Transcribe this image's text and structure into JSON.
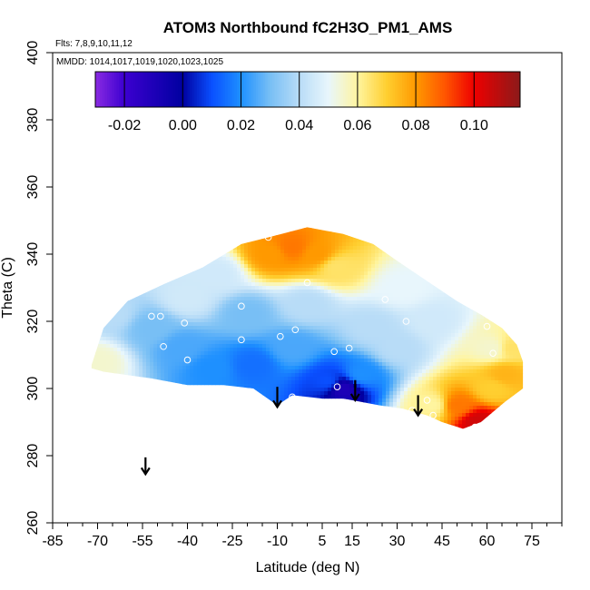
{
  "chart_data": {
    "type": "heatmap",
    "title": "ATOM3 Northbound fC2H3O_PM1_AMS",
    "subtitle_flights": "Flts: 7,8,9,10,11,12",
    "subtitle_dates": "MMDD: 1014,1017,1019,1020,1023,1025",
    "xlabel": "Latitude (deg N)",
    "ylabel": "Theta (C)",
    "xlim": [
      -85,
      85
    ],
    "ylim": [
      260,
      400
    ],
    "x_ticks": [
      "-85",
      "-70",
      "-55",
      "-40",
      "-25",
      "-10",
      "5",
      "15",
      "30",
      "45",
      "60",
      "75"
    ],
    "x_tick_values": [
      -85,
      -70,
      -55,
      -40,
      -25,
      -10,
      5,
      15,
      30,
      45,
      60,
      75
    ],
    "y_ticks": [
      "260",
      "280",
      "300",
      "320",
      "340",
      "360",
      "380",
      "400"
    ],
    "y_tick_values": [
      260,
      280,
      300,
      320,
      340,
      360,
      380,
      400
    ],
    "colorbar": {
      "range": [
        -0.03,
        0.1158
      ],
      "tick_labels": [
        "-0.02",
        "0.00",
        "0.02",
        "0.04",
        "0.06",
        "0.08",
        "0.10"
      ],
      "tick_values": [
        -0.02,
        0.0,
        0.02,
        0.04,
        0.06,
        0.08,
        0.1
      ],
      "stops": [
        {
          "v": -0.03,
          "color": "#8a2be2"
        },
        {
          "v": -0.02,
          "color": "#3c00d0"
        },
        {
          "v": 0.0,
          "color": "#0000a0"
        },
        {
          "v": 0.01,
          "color": "#0a50ff"
        },
        {
          "v": 0.02,
          "color": "#1e90ff"
        },
        {
          "v": 0.03,
          "color": "#78bff5"
        },
        {
          "v": 0.04,
          "color": "#b8dcf7"
        },
        {
          "v": 0.05,
          "color": "#e8f6fc"
        },
        {
          "v": 0.06,
          "color": "#fff5a0"
        },
        {
          "v": 0.07,
          "color": "#ffcf30"
        },
        {
          "v": 0.08,
          "color": "#ff9900"
        },
        {
          "v": 0.09,
          "color": "#ff5500"
        },
        {
          "v": 0.1,
          "color": "#ee0000"
        },
        {
          "v": 0.1158,
          "color": "#8b1a1a"
        }
      ]
    },
    "field_envelope_upper": [
      [
        -72,
        307
      ],
      [
        -68,
        318
      ],
      [
        -60,
        326
      ],
      [
        -48,
        331
      ],
      [
        -35,
        336
      ],
      [
        -22,
        343
      ],
      [
        -13,
        345
      ],
      [
        0,
        348
      ],
      [
        12,
        346
      ],
      [
        22,
        343
      ],
      [
        30,
        338
      ],
      [
        40,
        332
      ],
      [
        50,
        326
      ],
      [
        58,
        322
      ],
      [
        65,
        318
      ],
      [
        70,
        313
      ],
      [
        72,
        308
      ]
    ],
    "field_envelope_lower": [
      [
        72,
        300
      ],
      [
        66,
        296
      ],
      [
        58,
        290
      ],
      [
        52,
        288
      ],
      [
        45,
        290
      ],
      [
        40,
        292
      ],
      [
        32,
        294
      ],
      [
        24,
        295
      ],
      [
        18,
        296
      ],
      [
        12,
        297
      ],
      [
        5,
        297
      ],
      [
        -5,
        298
      ],
      [
        -10,
        295
      ],
      [
        -18,
        300
      ],
      [
        -28,
        301
      ],
      [
        -40,
        301
      ],
      [
        -52,
        303
      ],
      [
        -60,
        304
      ],
      [
        -68,
        305
      ],
      [
        -72,
        306
      ]
    ],
    "field_anchors": [
      {
        "lat": -65,
        "theta": 322,
        "value": 0.04
      },
      {
        "lat": -70,
        "theta": 308,
        "value": 0.055
      },
      {
        "lat": -52,
        "theta": 318,
        "value": 0.03
      },
      {
        "lat": -42,
        "theta": 312,
        "value": 0.025
      },
      {
        "lat": -40,
        "theta": 327,
        "value": 0.045
      },
      {
        "lat": -32,
        "theta": 306,
        "value": 0.02
      },
      {
        "lat": -30,
        "theta": 334,
        "value": 0.045
      },
      {
        "lat": -20,
        "theta": 322,
        "value": 0.03
      },
      {
        "lat": -18,
        "theta": 307,
        "value": 0.015
      },
      {
        "lat": -12,
        "theta": 340,
        "value": 0.08
      },
      {
        "lat": -5,
        "theta": 342,
        "value": 0.085
      },
      {
        "lat": 3,
        "theta": 340,
        "value": 0.08
      },
      {
        "lat": 10,
        "theta": 336,
        "value": 0.065
      },
      {
        "lat": 0,
        "theta": 325,
        "value": 0.04
      },
      {
        "lat": -5,
        "theta": 312,
        "value": 0.025
      },
      {
        "lat": 12,
        "theta": 300,
        "value": -0.01
      },
      {
        "lat": 7,
        "theta": 302,
        "value": 0.01
      },
      {
        "lat": 18,
        "theta": 304,
        "value": 0.02
      },
      {
        "lat": 22,
        "theta": 318,
        "value": 0.04
      },
      {
        "lat": 32,
        "theta": 330,
        "value": 0.05
      },
      {
        "lat": 30,
        "theta": 312,
        "value": 0.04
      },
      {
        "lat": 42,
        "theta": 320,
        "value": 0.045
      },
      {
        "lat": 42,
        "theta": 295,
        "value": 0.06
      },
      {
        "lat": 50,
        "theta": 295,
        "value": 0.085
      },
      {
        "lat": 57,
        "theta": 290,
        "value": 0.105
      },
      {
        "lat": 62,
        "theta": 300,
        "value": 0.07
      },
      {
        "lat": 62,
        "theta": 312,
        "value": 0.055
      },
      {
        "lat": 68,
        "theta": 312,
        "value": 0.065
      },
      {
        "lat": 66,
        "theta": 304,
        "value": 0.075
      }
    ],
    "sample_points": [
      {
        "lat": -64,
        "theta": 325
      },
      {
        "lat": -52,
        "theta": 321.5
      },
      {
        "lat": -49,
        "theta": 321.5
      },
      {
        "lat": -48,
        "theta": 312.5
      },
      {
        "lat": -41,
        "theta": 319.5
      },
      {
        "lat": -40,
        "theta": 308.5
      },
      {
        "lat": -22,
        "theta": 324.5
      },
      {
        "lat": -22,
        "theta": 314.5
      },
      {
        "lat": -9,
        "theta": 315.5
      },
      {
        "lat": -4,
        "theta": 317.5
      },
      {
        "lat": -13,
        "theta": 345
      },
      {
        "lat": 0,
        "theta": 331.5
      },
      {
        "lat": -5,
        "theta": 297.5
      },
      {
        "lat": 10,
        "theta": 300.5
      },
      {
        "lat": 9,
        "theta": 311
      },
      {
        "lat": 14,
        "theta": 312
      },
      {
        "lat": 26,
        "theta": 326.5
      },
      {
        "lat": 33,
        "theta": 320
      },
      {
        "lat": 40,
        "theta": 296.5
      },
      {
        "lat": 35,
        "theta": 293.5
      },
      {
        "lat": 42,
        "theta": 292
      },
      {
        "lat": 56,
        "theta": 288.5
      },
      {
        "lat": 62,
        "theta": 310.5
      },
      {
        "lat": 60,
        "theta": 318.5
      }
    ],
    "arrows": [
      {
        "lat": -54,
        "theta_top": 279.5,
        "theta_tip": 274.5
      },
      {
        "lat": -10,
        "theta_top": 300.5,
        "theta_tip": 294.5
      },
      {
        "lat": 16,
        "theta_top": 302.5,
        "theta_tip": 296.5
      },
      {
        "lat": 37,
        "theta_top": 298,
        "theta_tip": 292
      }
    ],
    "grid": false,
    "legend": "colorbar top"
  }
}
